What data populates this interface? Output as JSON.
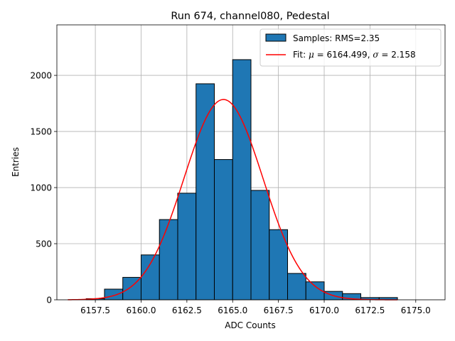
{
  "chart_data": {
    "type": "bar",
    "title": "Run 674, channel080, Pedestal",
    "xlabel": "ADC Counts",
    "ylabel": "Entries",
    "xlim": [
      6155.4,
      6176.6
    ],
    "ylim": [
      0,
      2450
    ],
    "grid": true,
    "legend_position": "top-right",
    "x_ticks": [
      6157.5,
      6160.0,
      6162.5,
      6165.0,
      6167.5,
      6170.0,
      6172.5,
      6175.0
    ],
    "x_tick_labels": [
      "6157.5",
      "6160.0",
      "6162.5",
      "6165.0",
      "6167.5",
      "6170.0",
      "6172.5",
      "6175.0"
    ],
    "y_ticks": [
      0,
      500,
      1000,
      1500,
      2000
    ],
    "y_tick_labels": [
      "0",
      "500",
      "1000",
      "1500",
      "2000"
    ],
    "bin_edges": [
      6156.0,
      6157.0,
      6158.0,
      6159.0,
      6160.0,
      6161.0,
      6162.0,
      6163.0,
      6164.0,
      6165.0,
      6166.0,
      6167.0,
      6168.0,
      6169.0,
      6170.0,
      6171.0,
      6172.0,
      6173.0,
      6174.0
    ],
    "bins": [
      {
        "left": 6157.0,
        "right": 6158.0,
        "value": 10
      },
      {
        "left": 6158.0,
        "right": 6159.0,
        "value": 95
      },
      {
        "left": 6159.0,
        "right": 6160.0,
        "value": 200
      },
      {
        "left": 6160.0,
        "right": 6161.0,
        "value": 400
      },
      {
        "left": 6161.0,
        "right": 6162.0,
        "value": 715
      },
      {
        "left": 6162.0,
        "right": 6163.0,
        "value": 950
      },
      {
        "left": 6163.0,
        "right": 6164.0,
        "value": 1925
      },
      {
        "left": 6164.0,
        "right": 6165.0,
        "value": 1250
      },
      {
        "left": 6165.0,
        "right": 6166.0,
        "value": 2140
      },
      {
        "left": 6166.0,
        "right": 6167.0,
        "value": 975
      },
      {
        "left": 6167.0,
        "right": 6168.0,
        "value": 625
      },
      {
        "left": 6168.0,
        "right": 6169.0,
        "value": 235
      },
      {
        "left": 6169.0,
        "right": 6170.0,
        "value": 160
      },
      {
        "left": 6170.0,
        "right": 6171.0,
        "value": 75
      },
      {
        "left": 6171.0,
        "right": 6172.0,
        "value": 55
      },
      {
        "left": 6172.0,
        "right": 6173.0,
        "value": 20
      },
      {
        "left": 6173.0,
        "right": 6174.0,
        "value": 20
      }
    ],
    "fit": {
      "mu": 6164.499,
      "sigma": 2.158,
      "amplitude": 1785,
      "x_range": [
        6156.0,
        6174.0
      ]
    },
    "series": [
      {
        "name": "Samples: RMS=2.35",
        "kind": "histogram",
        "color": "#1f77b4",
        "edgecolor": "#000000"
      },
      {
        "name_prefix": "Fit: ",
        "mu_label": "6164.499",
        "sigma_label": "2.158",
        "kind": "line",
        "color": "#ff0000"
      }
    ]
  }
}
